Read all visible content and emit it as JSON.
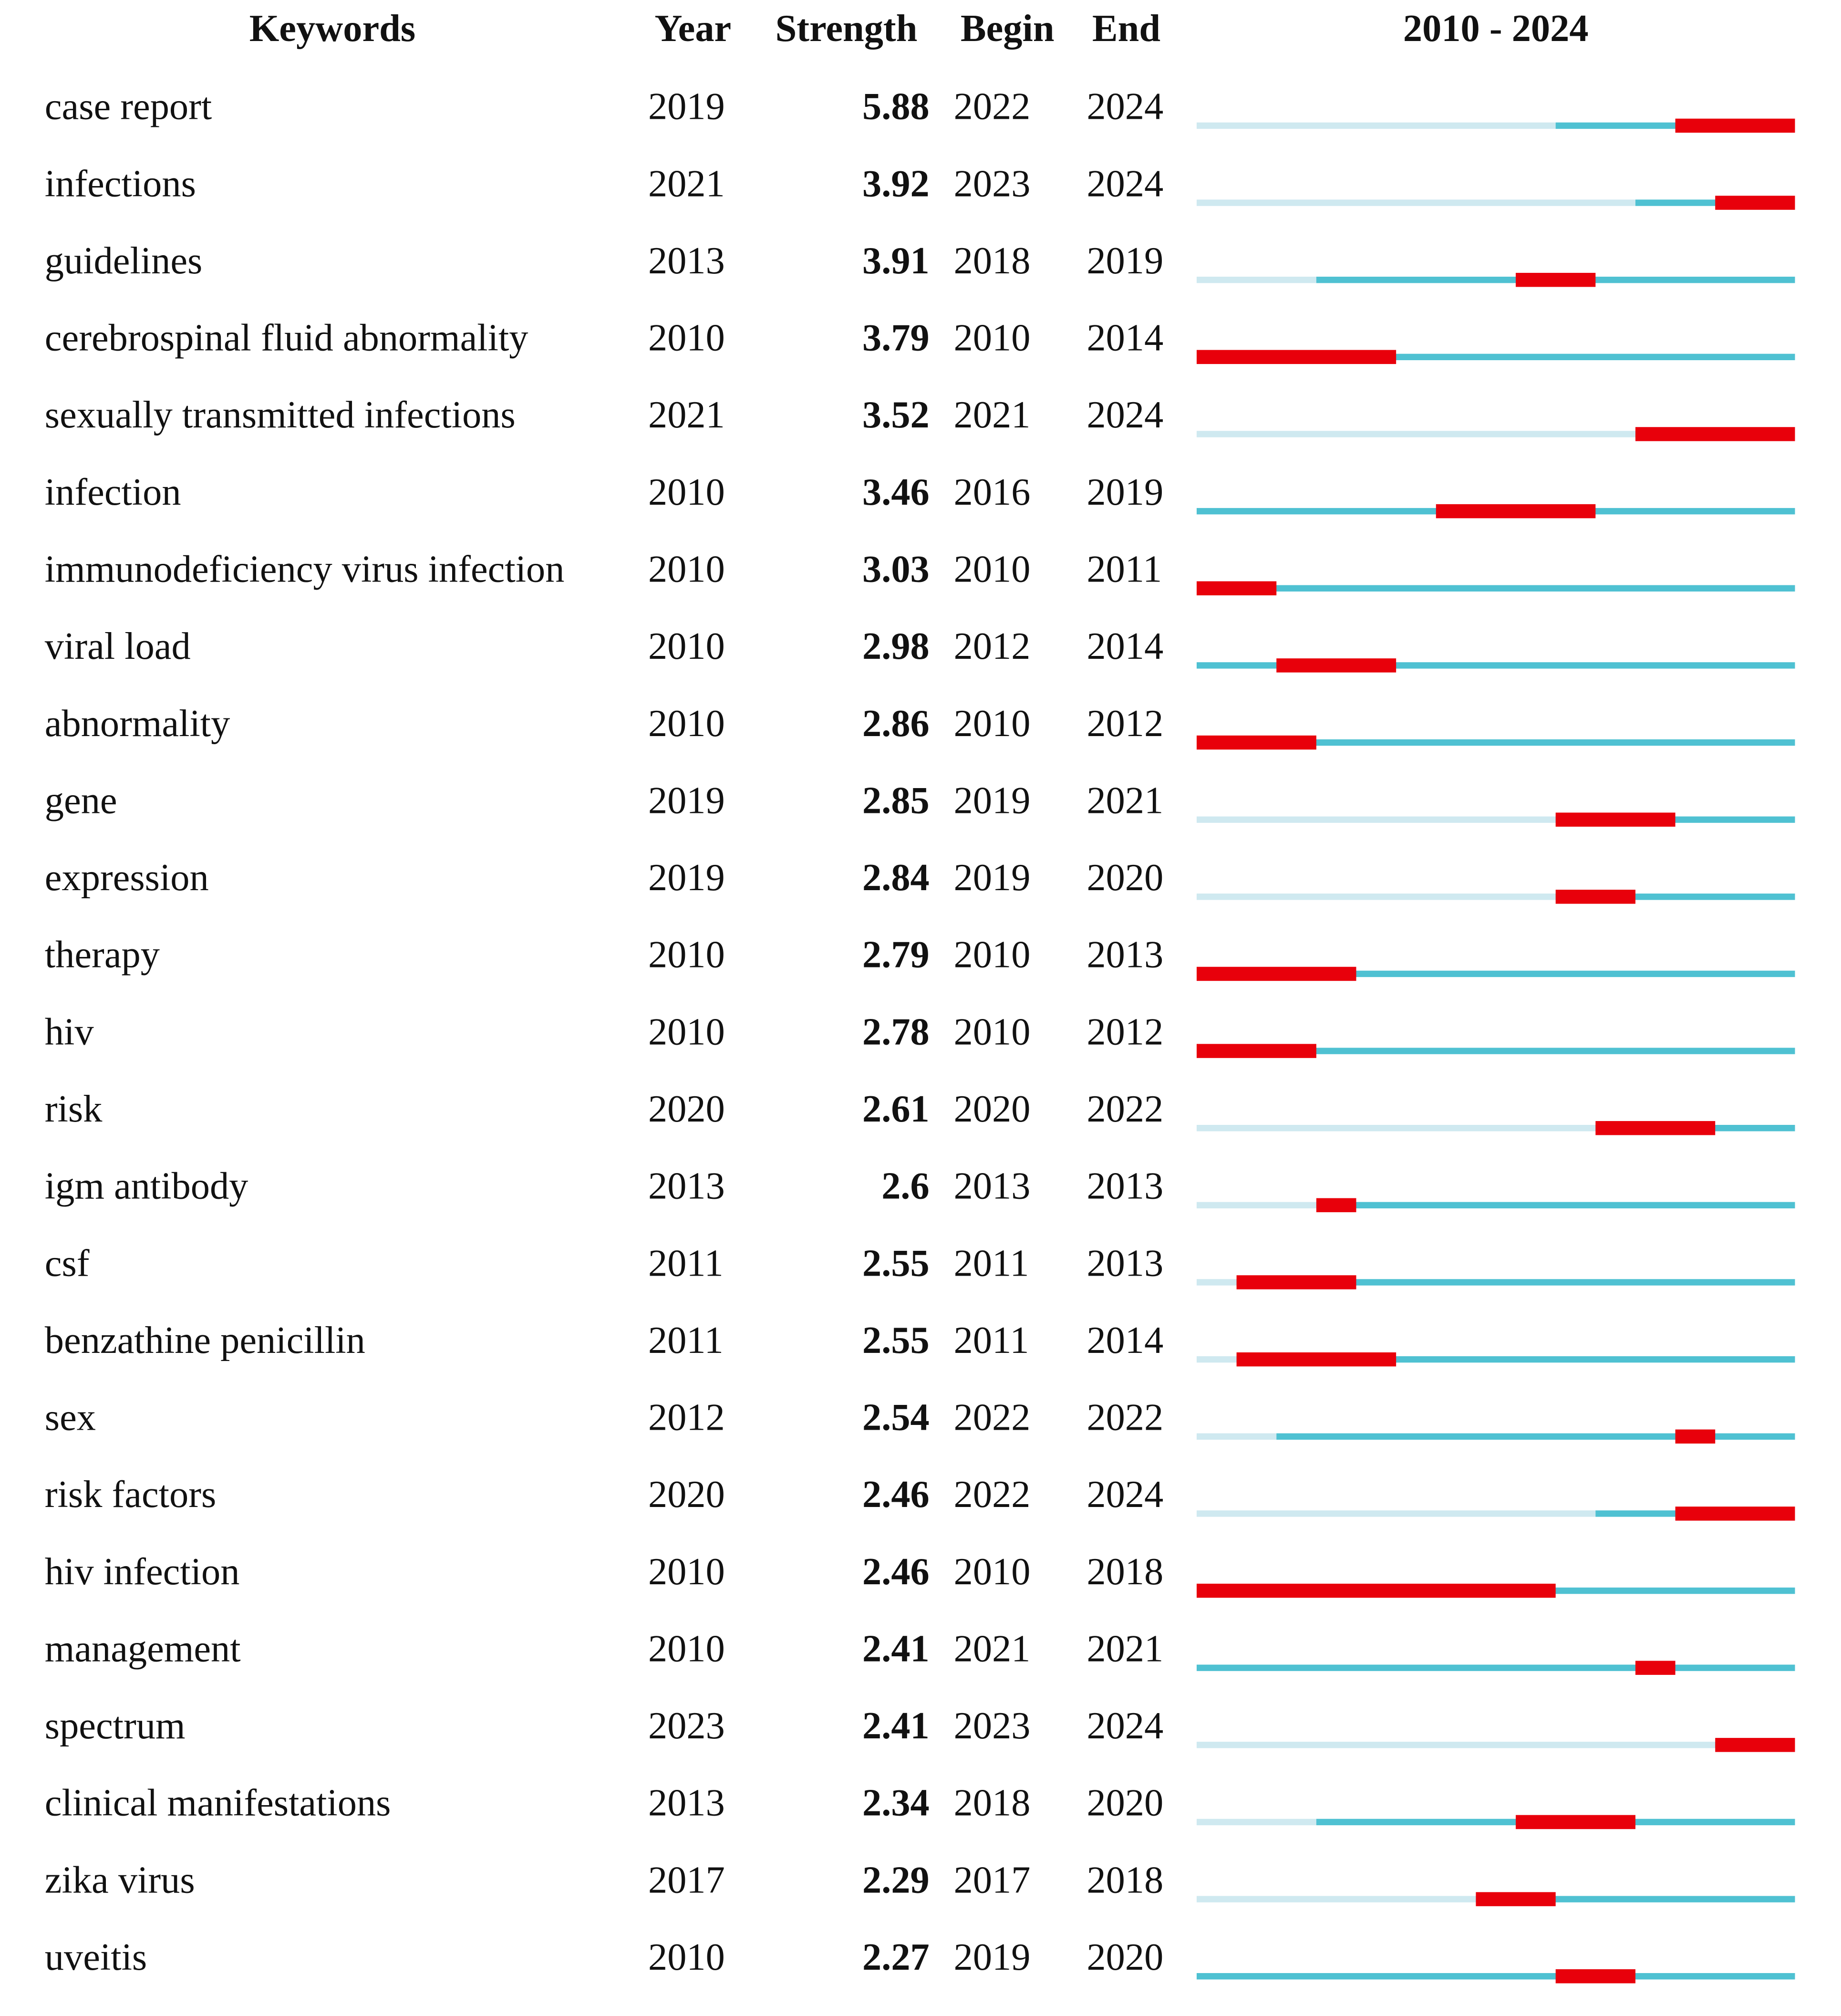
{
  "chart_data": {
    "type": "burst",
    "headers": {
      "keyword": "Keywords",
      "year": "Year",
      "strength": "Strength",
      "begin": "Begin",
      "end": "End",
      "timeline": "2010 - 2024"
    },
    "xlim": [
      2010,
      2024
    ],
    "colors": {
      "before": "#cfe9f0",
      "active": "#4fc1d2",
      "burst": "#e8000b"
    },
    "rows": [
      {
        "keyword": "case report",
        "year": 2019,
        "strength": 5.88,
        "begin": 2022,
        "end": 2024
      },
      {
        "keyword": "infections",
        "year": 2021,
        "strength": 3.92,
        "begin": 2023,
        "end": 2024
      },
      {
        "keyword": "guidelines",
        "year": 2013,
        "strength": 3.91,
        "begin": 2018,
        "end": 2019
      },
      {
        "keyword": "cerebrospinal fluid abnormality",
        "year": 2010,
        "strength": 3.79,
        "begin": 2010,
        "end": 2014
      },
      {
        "keyword": "sexually transmitted infections",
        "year": 2021,
        "strength": 3.52,
        "begin": 2021,
        "end": 2024
      },
      {
        "keyword": "infection",
        "year": 2010,
        "strength": 3.46,
        "begin": 2016,
        "end": 2019
      },
      {
        "keyword": "immunodeficiency virus infection",
        "year": 2010,
        "strength": 3.03,
        "begin": 2010,
        "end": 2011
      },
      {
        "keyword": "viral load",
        "year": 2010,
        "strength": 2.98,
        "begin": 2012,
        "end": 2014
      },
      {
        "keyword": "abnormality",
        "year": 2010,
        "strength": 2.86,
        "begin": 2010,
        "end": 2012
      },
      {
        "keyword": "gene",
        "year": 2019,
        "strength": 2.85,
        "begin": 2019,
        "end": 2021
      },
      {
        "keyword": "expression",
        "year": 2019,
        "strength": 2.84,
        "begin": 2019,
        "end": 2020
      },
      {
        "keyword": "therapy",
        "year": 2010,
        "strength": 2.79,
        "begin": 2010,
        "end": 2013
      },
      {
        "keyword": "hiv",
        "year": 2010,
        "strength": 2.78,
        "begin": 2010,
        "end": 2012
      },
      {
        "keyword": "risk",
        "year": 2020,
        "strength": 2.61,
        "begin": 2020,
        "end": 2022
      },
      {
        "keyword": "igm antibody",
        "year": 2013,
        "strength": 2.6,
        "begin": 2013,
        "end": 2013
      },
      {
        "keyword": "csf",
        "year": 2011,
        "strength": 2.55,
        "begin": 2011,
        "end": 2013
      },
      {
        "keyword": "benzathine penicillin",
        "year": 2011,
        "strength": 2.55,
        "begin": 2011,
        "end": 2014
      },
      {
        "keyword": "sex",
        "year": 2012,
        "strength": 2.54,
        "begin": 2022,
        "end": 2022
      },
      {
        "keyword": "risk factors",
        "year": 2020,
        "strength": 2.46,
        "begin": 2022,
        "end": 2024
      },
      {
        "keyword": "hiv infection",
        "year": 2010,
        "strength": 2.46,
        "begin": 2010,
        "end": 2018
      },
      {
        "keyword": "management",
        "year": 2010,
        "strength": 2.41,
        "begin": 2021,
        "end": 2021
      },
      {
        "keyword": "spectrum",
        "year": 2023,
        "strength": 2.41,
        "begin": 2023,
        "end": 2024
      },
      {
        "keyword": "clinical manifestations",
        "year": 2013,
        "strength": 2.34,
        "begin": 2018,
        "end": 2020
      },
      {
        "keyword": "zika virus",
        "year": 2017,
        "strength": 2.29,
        "begin": 2017,
        "end": 2018
      },
      {
        "keyword": "uveitis",
        "year": 2010,
        "strength": 2.27,
        "begin": 2019,
        "end": 2020
      }
    ]
  }
}
